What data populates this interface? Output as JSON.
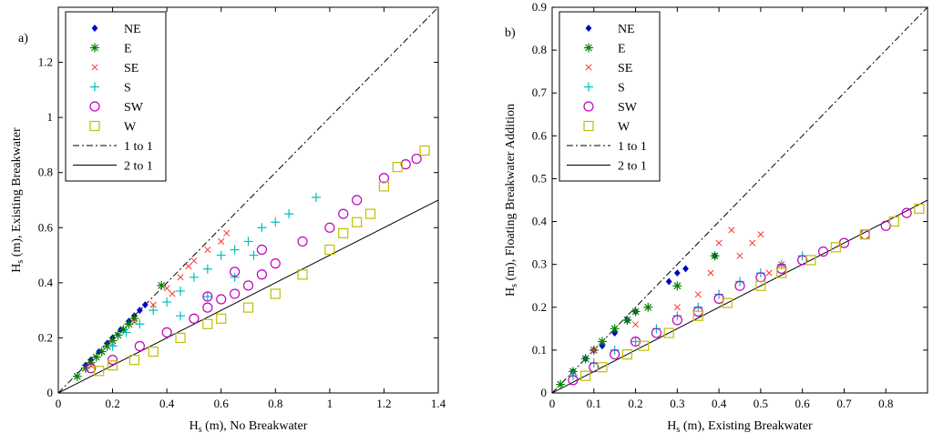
{
  "figure": {
    "series_styles": [
      {
        "name": "NE",
        "color": "#0000cc",
        "marker": "diamond"
      },
      {
        "name": "E",
        "color": "#008000",
        "marker": "asterisk"
      },
      {
        "name": "SE",
        "color": "#ff3333",
        "marker": "x"
      },
      {
        "name": "S",
        "color": "#00bfbf",
        "marker": "plus"
      },
      {
        "name": "SW",
        "color": "#c000c0",
        "marker": "circle"
      },
      {
        "name": "W",
        "color": "#bfbf00",
        "marker": "square"
      }
    ],
    "reference_lines": [
      {
        "name": "1 to 1",
        "style": "dash-dot",
        "slope": 1
      },
      {
        "name": "2 to 1",
        "style": "solid",
        "slope": 0.5
      }
    ]
  },
  "chart_data": [
    {
      "type": "scatter",
      "panel_label": "a)",
      "xlabel_main": "H",
      "xlabel_sub": "s",
      "xlabel_rest": " (m), No Breakwater",
      "ylabel_main": "H",
      "ylabel_sub": "s",
      "ylabel_rest": " (m), Existing Breakwater",
      "xlim": [
        0,
        1.4
      ],
      "ylim": [
        0,
        1.4
      ],
      "xticks": [
        0,
        0.2,
        0.4,
        0.6,
        0.8,
        1,
        1.2,
        1.4
      ],
      "xtick_labels": [
        "0",
        "0.2",
        "0.4",
        "0.6",
        "0.8",
        "1",
        "1.2",
        "1.4"
      ],
      "yticks": [
        0,
        0.2,
        0.4,
        0.6,
        0.8,
        1,
        1.2
      ],
      "ytick_labels": [
        "0",
        "0.2",
        "0.4",
        "0.6",
        "0.8",
        "1",
        "1.2"
      ],
      "legend": {
        "location": "top-left",
        "entries": [
          "NE",
          "E",
          "SE",
          "S",
          "SW",
          "W",
          "1 to 1",
          "2 to 1"
        ]
      },
      "series": [
        {
          "name": "NE",
          "points": [
            [
              0.1,
              0.1
            ],
            [
              0.12,
              0.12
            ],
            [
              0.15,
              0.15
            ],
            [
              0.18,
              0.18
            ],
            [
              0.2,
              0.2
            ],
            [
              0.23,
              0.23
            ],
            [
              0.26,
              0.26
            ],
            [
              0.28,
              0.28
            ],
            [
              0.3,
              0.3
            ],
            [
              0.32,
              0.32
            ]
          ]
        },
        {
          "name": "E",
          "points": [
            [
              0.07,
              0.06
            ],
            [
              0.1,
              0.09
            ],
            [
              0.12,
              0.11
            ],
            [
              0.14,
              0.13
            ],
            [
              0.16,
              0.15
            ],
            [
              0.18,
              0.17
            ],
            [
              0.2,
              0.19
            ],
            [
              0.22,
              0.21
            ],
            [
              0.24,
              0.23
            ],
            [
              0.26,
              0.25
            ],
            [
              0.28,
              0.27
            ],
            [
              0.38,
              0.39
            ]
          ]
        },
        {
          "name": "SE",
          "points": [
            [
              0.12,
              0.1
            ],
            [
              0.2,
              0.18
            ],
            [
              0.28,
              0.26
            ],
            [
              0.35,
              0.32
            ],
            [
              0.4,
              0.38
            ],
            [
              0.45,
              0.42
            ],
            [
              0.5,
              0.48
            ],
            [
              0.55,
              0.52
            ],
            [
              0.6,
              0.55
            ],
            [
              0.62,
              0.58
            ],
            [
              0.48,
              0.46
            ],
            [
              0.42,
              0.36
            ]
          ]
        },
        {
          "name": "S",
          "points": [
            [
              0.2,
              0.17
            ],
            [
              0.25,
              0.22
            ],
            [
              0.3,
              0.25
            ],
            [
              0.35,
              0.3
            ],
            [
              0.4,
              0.33
            ],
            [
              0.45,
              0.37
            ],
            [
              0.5,
              0.42
            ],
            [
              0.55,
              0.45
            ],
            [
              0.6,
              0.5
            ],
            [
              0.65,
              0.52
            ],
            [
              0.7,
              0.55
            ],
            [
              0.75,
              0.6
            ],
            [
              0.8,
              0.62
            ],
            [
              0.85,
              0.65
            ],
            [
              0.95,
              0.71
            ],
            [
              0.45,
              0.28
            ],
            [
              0.55,
              0.35
            ],
            [
              0.65,
              0.42
            ],
            [
              0.72,
              0.5
            ]
          ]
        },
        {
          "name": "SW",
          "points": [
            [
              0.12,
              0.09
            ],
            [
              0.2,
              0.12
            ],
            [
              0.3,
              0.17
            ],
            [
              0.4,
              0.22
            ],
            [
              0.5,
              0.27
            ],
            [
              0.55,
              0.31
            ],
            [
              0.6,
              0.34
            ],
            [
              0.65,
              0.36
            ],
            [
              0.7,
              0.39
            ],
            [
              0.75,
              0.43
            ],
            [
              0.8,
              0.47
            ],
            [
              0.9,
              0.55
            ],
            [
              1.0,
              0.6
            ],
            [
              1.05,
              0.65
            ],
            [
              1.1,
              0.7
            ],
            [
              1.2,
              0.78
            ],
            [
              1.28,
              0.83
            ],
            [
              1.32,
              0.85
            ],
            [
              0.55,
              0.35
            ],
            [
              0.65,
              0.44
            ],
            [
              0.75,
              0.52
            ]
          ]
        },
        {
          "name": "W",
          "points": [
            [
              0.15,
              0.08
            ],
            [
              0.2,
              0.1
            ],
            [
              0.28,
              0.12
            ],
            [
              0.35,
              0.15
            ],
            [
              0.45,
              0.2
            ],
            [
              0.55,
              0.25
            ],
            [
              0.6,
              0.27
            ],
            [
              0.7,
              0.31
            ],
            [
              0.8,
              0.36
            ],
            [
              0.9,
              0.43
            ],
            [
              1.0,
              0.52
            ],
            [
              1.05,
              0.58
            ],
            [
              1.1,
              0.62
            ],
            [
              1.15,
              0.65
            ],
            [
              1.2,
              0.75
            ],
            [
              1.25,
              0.82
            ],
            [
              1.35,
              0.88
            ]
          ]
        }
      ]
    },
    {
      "type": "scatter",
      "panel_label": "b)",
      "xlabel_main": "H",
      "xlabel_sub": "s",
      "xlabel_rest": " (m), Existing Breakwater",
      "ylabel_main": "H",
      "ylabel_sub": "s",
      "ylabel_rest": " (m), Floating Breakwater Addition",
      "xlim": [
        0,
        0.9
      ],
      "ylim": [
        0,
        0.9
      ],
      "xticks": [
        0,
        0.1,
        0.2,
        0.3,
        0.4,
        0.5,
        0.6,
        0.7,
        0.8
      ],
      "xtick_labels": [
        "0",
        "0.1",
        "0.2",
        "0.3",
        "0.4",
        "0.5",
        "0.6",
        "0.7",
        "0.8"
      ],
      "yticks": [
        0,
        0.1,
        0.2,
        0.3,
        0.4,
        0.5,
        0.6,
        0.7,
        0.8,
        0.9
      ],
      "ytick_labels": [
        "0",
        "0.1",
        "0.2",
        "0.3",
        "0.4",
        "0.5",
        "0.6",
        "0.7",
        "0.8",
        "0.9"
      ],
      "legend": {
        "location": "top-left",
        "entries": [
          "NE",
          "E",
          "SE",
          "S",
          "SW",
          "W",
          "1 to 1",
          "2 to 1"
        ]
      },
      "series": [
        {
          "name": "NE",
          "points": [
            [
              0.05,
              0.05
            ],
            [
              0.08,
              0.08
            ],
            [
              0.1,
              0.1
            ],
            [
              0.12,
              0.11
            ],
            [
              0.15,
              0.14
            ],
            [
              0.18,
              0.17
            ],
            [
              0.2,
              0.19
            ],
            [
              0.28,
              0.26
            ],
            [
              0.3,
              0.28
            ],
            [
              0.32,
              0.29
            ],
            [
              0.39,
              0.32
            ]
          ]
        },
        {
          "name": "E",
          "points": [
            [
              0.02,
              0.02
            ],
            [
              0.05,
              0.05
            ],
            [
              0.08,
              0.08
            ],
            [
              0.1,
              0.1
            ],
            [
              0.12,
              0.12
            ],
            [
              0.15,
              0.15
            ],
            [
              0.18,
              0.17
            ],
            [
              0.2,
              0.19
            ],
            [
              0.23,
              0.2
            ],
            [
              0.3,
              0.25
            ],
            [
              0.39,
              0.32
            ]
          ]
        },
        {
          "name": "SE",
          "points": [
            [
              0.1,
              0.1
            ],
            [
              0.2,
              0.16
            ],
            [
              0.3,
              0.2
            ],
            [
              0.35,
              0.23
            ],
            [
              0.4,
              0.35
            ],
            [
              0.43,
              0.38
            ],
            [
              0.45,
              0.32
            ],
            [
              0.48,
              0.35
            ],
            [
              0.5,
              0.37
            ],
            [
              0.52,
              0.28
            ],
            [
              0.55,
              0.3
            ],
            [
              0.38,
              0.28
            ]
          ]
        },
        {
          "name": "S",
          "points": [
            [
              0.05,
              0.04
            ],
            [
              0.1,
              0.07
            ],
            [
              0.15,
              0.1
            ],
            [
              0.2,
              0.12
            ],
            [
              0.25,
              0.15
            ],
            [
              0.3,
              0.18
            ],
            [
              0.35,
              0.2
            ],
            [
              0.4,
              0.23
            ],
            [
              0.45,
              0.26
            ],
            [
              0.5,
              0.28
            ],
            [
              0.55,
              0.3
            ],
            [
              0.6,
              0.32
            ]
          ]
        },
        {
          "name": "SW",
          "points": [
            [
              0.05,
              0.03
            ],
            [
              0.1,
              0.06
            ],
            [
              0.15,
              0.09
            ],
            [
              0.2,
              0.12
            ],
            [
              0.25,
              0.14
            ],
            [
              0.3,
              0.17
            ],
            [
              0.35,
              0.19
            ],
            [
              0.4,
              0.22
            ],
            [
              0.45,
              0.25
            ],
            [
              0.5,
              0.27
            ],
            [
              0.55,
              0.29
            ],
            [
              0.6,
              0.31
            ],
            [
              0.65,
              0.33
            ],
            [
              0.7,
              0.35
            ],
            [
              0.75,
              0.37
            ],
            [
              0.8,
              0.39
            ],
            [
              0.85,
              0.42
            ]
          ]
        },
        {
          "name": "W",
          "points": [
            [
              0.08,
              0.04
            ],
            [
              0.12,
              0.06
            ],
            [
              0.18,
              0.09
            ],
            [
              0.22,
              0.11
            ],
            [
              0.28,
              0.14
            ],
            [
              0.35,
              0.18
            ],
            [
              0.42,
              0.21
            ],
            [
              0.5,
              0.25
            ],
            [
              0.55,
              0.28
            ],
            [
              0.62,
              0.31
            ],
            [
              0.68,
              0.34
            ],
            [
              0.75,
              0.37
            ],
            [
              0.82,
              0.4
            ],
            [
              0.88,
              0.43
            ]
          ]
        }
      ]
    }
  ]
}
